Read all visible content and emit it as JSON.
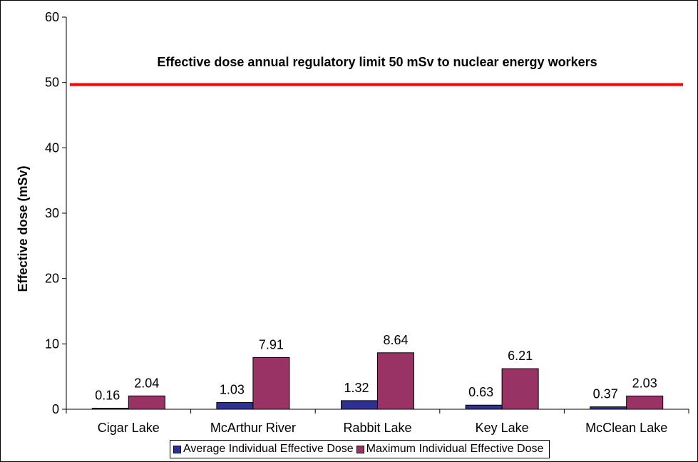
{
  "chart_data": {
    "type": "bar",
    "categories": [
      "Cigar Lake",
      "McArthur River",
      "Rabbit Lake",
      "Key Lake",
      "McClean Lake"
    ],
    "series": [
      {
        "name": "Average Individual Effective Dose",
        "values": [
          0.16,
          1.03,
          1.32,
          0.63,
          0.37
        ],
        "color": "#2E3192"
      },
      {
        "name": "Maximum Individual Effective Dose",
        "values": [
          2.04,
          7.91,
          8.64,
          6.21,
          2.03
        ],
        "color": "#993366"
      }
    ],
    "data_labels": [
      [
        "0.16",
        "1.03",
        "1.32",
        "0.63",
        "0.37"
      ],
      [
        "2.04",
        "7.91",
        "8.64",
        "6.21",
        "2.03"
      ]
    ],
    "ylabel": "Effective dose (mSv)",
    "xlabel": "",
    "ylim": [
      0,
      60
    ],
    "yticks": [
      0,
      10,
      20,
      30,
      40,
      50,
      60
    ],
    "reference_line": {
      "value": 50,
      "color": "#FF0000",
      "label": "Effective dose annual regulatory limit 50 mSv to nuclear energy workers"
    },
    "legend_position": "bottom",
    "grid": false
  }
}
